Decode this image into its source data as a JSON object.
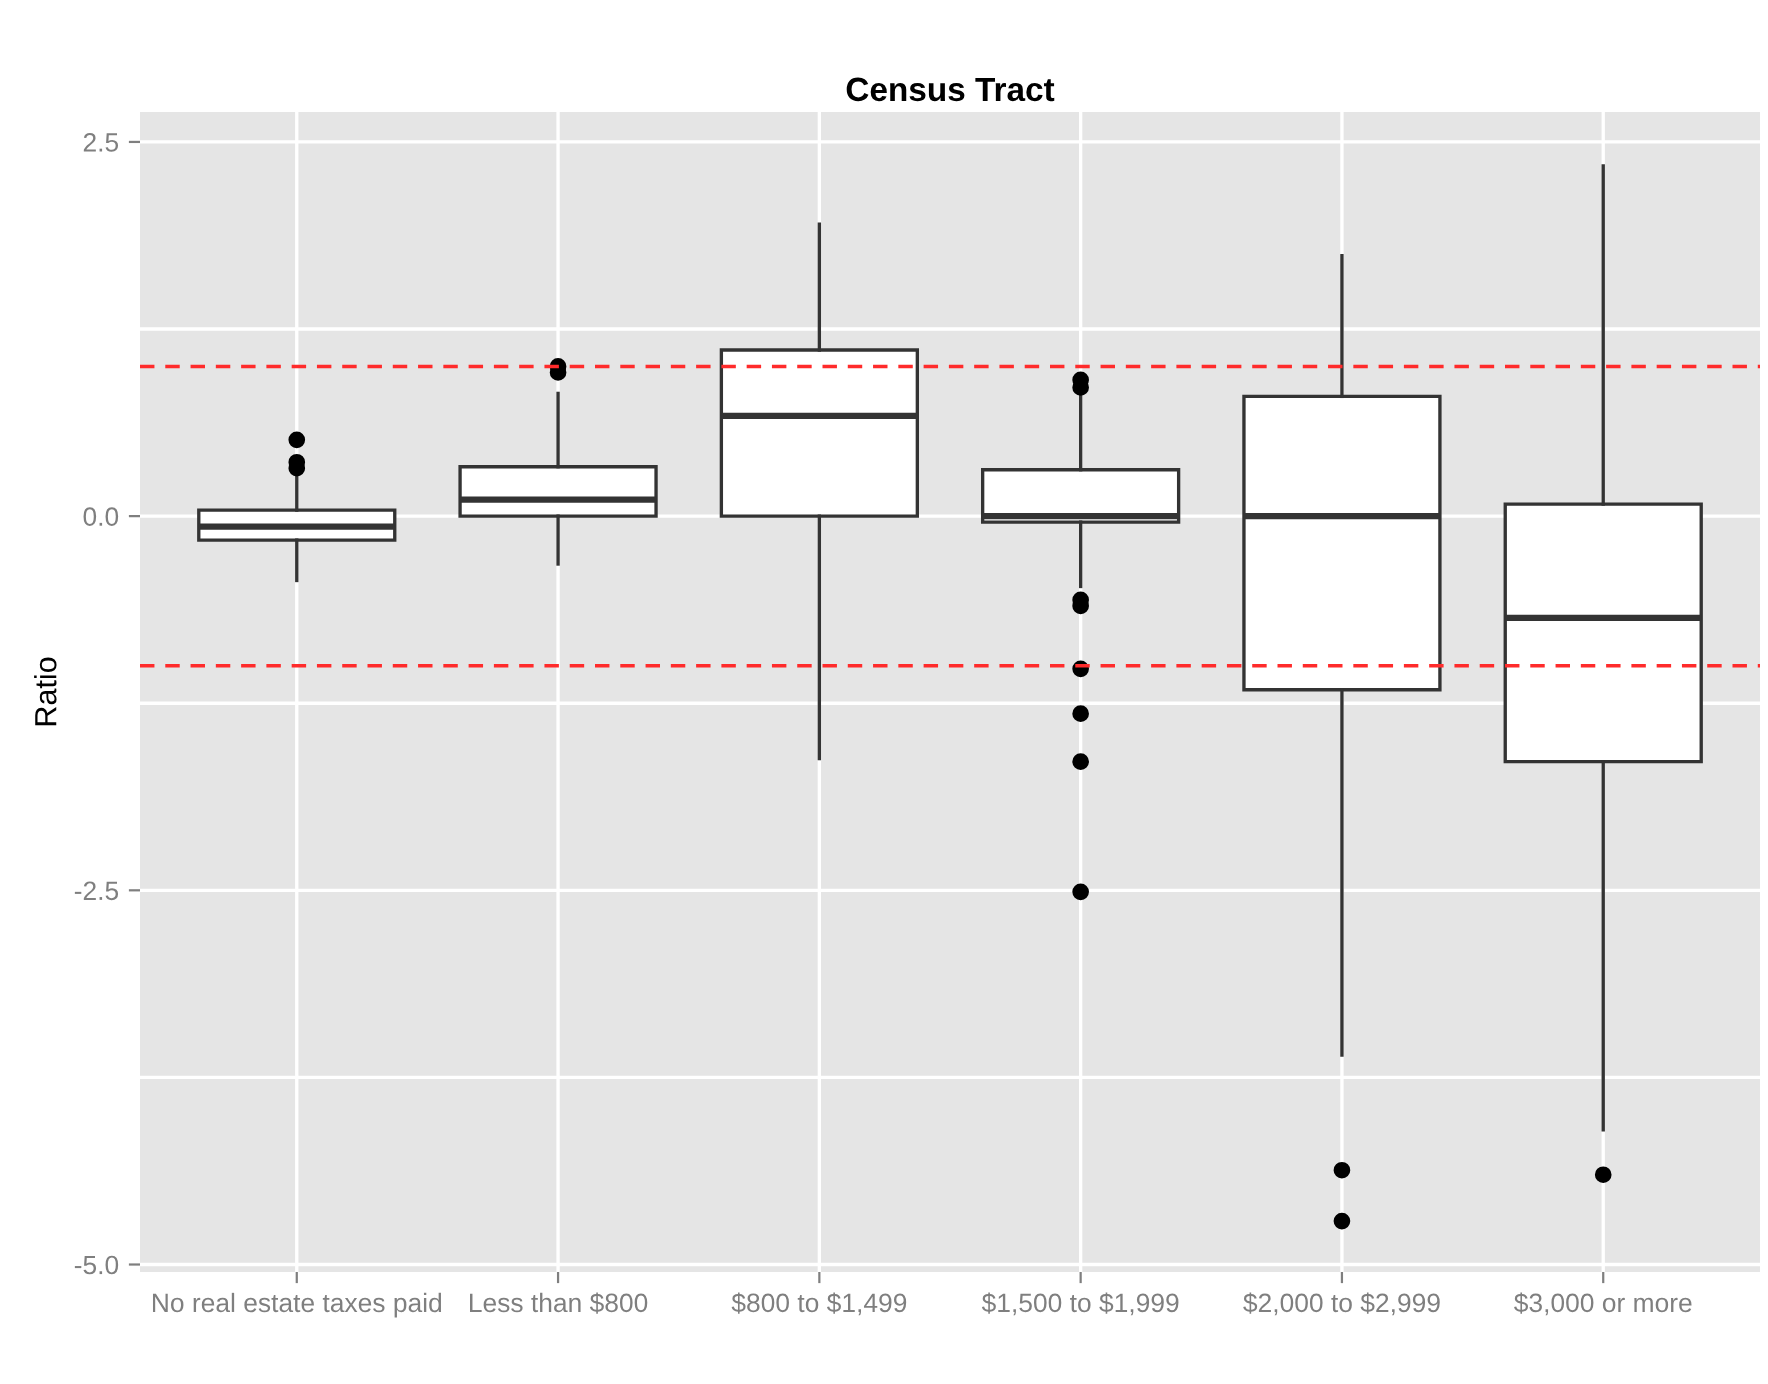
{
  "chart_data": {
    "type": "box",
    "title": "Census Tract",
    "ylabel": "Ratio",
    "categories": [
      "No real estate taxes paid",
      "Less than $800",
      "$800 to $1,499",
      "$1,500 to $1,999",
      "$2,000 to $2,999",
      "$3,000 or more"
    ],
    "boxes": [
      {
        "low": -0.43,
        "q1": -0.16,
        "median": -0.07,
        "q3": 0.04,
        "high": 0.3,
        "outliers": [
          0.51,
          0.36,
          0.32
        ]
      },
      {
        "low": -0.32,
        "q1": 0.0,
        "median": 0.11,
        "q3": 0.33,
        "high": 0.82,
        "outliers": [
          1.0,
          0.96
        ]
      },
      {
        "low": -1.62,
        "q1": 0.0,
        "median": 0.67,
        "q3": 1.11,
        "high": 1.95
      },
      {
        "low": -0.47,
        "q1": -0.04,
        "median": 0.0,
        "q3": 0.31,
        "high": 0.83,
        "outliers": [
          0.91,
          0.86,
          -0.56,
          -0.6,
          -1.02,
          -1.32,
          -1.64,
          -2.51
        ]
      },
      {
        "low": -3.6,
        "q1": -1.16,
        "median": 0.0,
        "q3": 0.8,
        "high": 1.74,
        "outliers": [
          -4.37,
          -4.71
        ]
      },
      {
        "low": -4.1,
        "q1": -1.64,
        "median": -0.68,
        "q3": 0.08,
        "high": 2.34,
        "outliers": [
          -4.4
        ]
      }
    ],
    "color": "#ffffff",
    "ylim": [
      -5.05,
      2.7
    ],
    "yticks": [
      {
        "value": -5.0,
        "label": "-5.0"
      },
      {
        "value": -3.75,
        "label": null
      },
      {
        "value": -2.5,
        "label": "-2.5"
      },
      {
        "value": -1.25,
        "label": null
      },
      {
        "value": 0.0,
        "label": "0.0"
      },
      {
        "value": 1.25,
        "label": null
      },
      {
        "value": 2.5,
        "label": "2.5"
      }
    ],
    "ref_lines": [
      {
        "axis": "y",
        "value": 1,
        "label": null,
        "color": "#ff2b2b",
        "line_style": "dashed"
      },
      {
        "axis": "y",
        "value": -1,
        "label": null,
        "color": "#ff2b2b",
        "line_style": "dashed"
      }
    ],
    "grid": true,
    "legend": false
  }
}
